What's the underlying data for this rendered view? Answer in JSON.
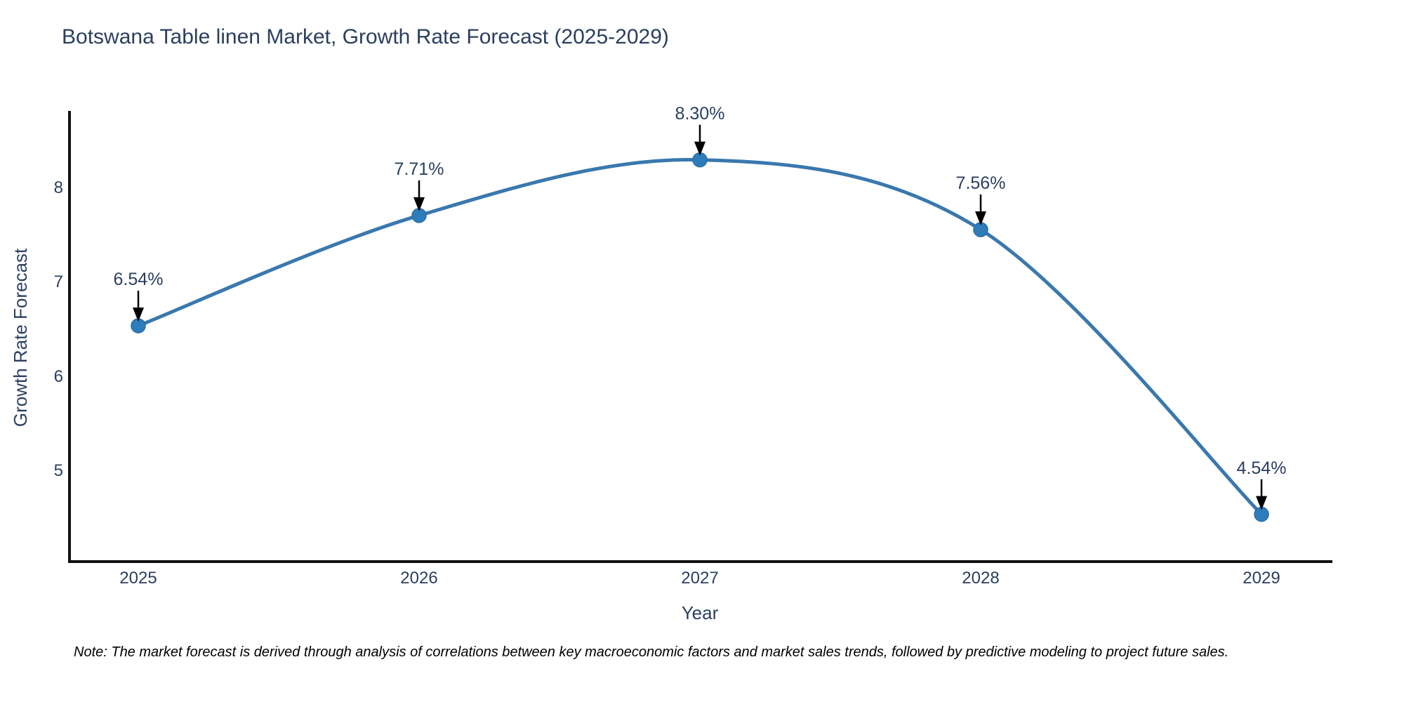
{
  "title": "Botswana Table linen Market, Growth Rate Forecast (2025-2029)",
  "note": "Note: The market forecast is derived through analysis of correlations between key macroeconomic factors and market sales trends, followed by predictive modeling to project future sales.",
  "chart_data": {
    "type": "line",
    "title": "Botswana Table linen Market, Growth Rate Forecast (2025-2029)",
    "xlabel": "Year",
    "ylabel": "Growth Rate Forecast",
    "x": [
      2025,
      2026,
      2027,
      2028,
      2029
    ],
    "series": [
      {
        "name": "Growth Rate Forecast",
        "values": [
          6.54,
          7.71,
          8.3,
          7.56,
          4.54
        ]
      }
    ],
    "point_labels": [
      "6.54%",
      "7.71%",
      "8.30%",
      "7.56%",
      "4.54%"
    ],
    "x_ticks": [
      "2025",
      "2026",
      "2027",
      "2028",
      "2029"
    ],
    "y_ticks": [
      "8",
      "7",
      "6",
      "5"
    ],
    "y_tick_values": [
      8,
      7,
      6,
      5
    ],
    "ylim": [
      4.0,
      8.8
    ],
    "grid": false,
    "legend": "none",
    "line_shape": "spline",
    "annotation_arrows": true,
    "colors": {
      "line": "#3a78ad",
      "marker": "#2d7dbb",
      "marker_edge": "#2a6da5",
      "axis_line": "#111111",
      "label_text": "#2a3f5f",
      "arrow": "#000000",
      "note_text": "#000000",
      "background": "#ffffff"
    }
  }
}
